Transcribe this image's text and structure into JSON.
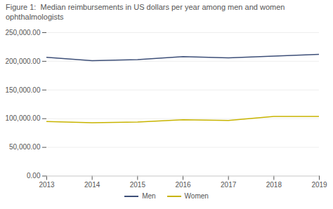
{
  "chart_data": {
    "type": "line",
    "title": "Figure 1:  Median reimbursements in US dollars per year among men and women ophthalmologists",
    "x": [
      2013,
      2014,
      2015,
      2016,
      2017,
      2018,
      2019
    ],
    "series": [
      {
        "name": "Men",
        "color": "#3d4f78",
        "values": [
          207000,
          201000,
          203000,
          208000,
          206000,
          209000,
          212000
        ]
      },
      {
        "name": "Women",
        "color": "#c8b400",
        "values": [
          95000,
          93000,
          94000,
          98000,
          97000,
          104000,
          104000
        ]
      }
    ],
    "xlim": [
      2013,
      2019
    ],
    "xticks": [
      2013,
      2014,
      2015,
      2016,
      2017,
      2018,
      2019
    ],
    "ylim": [
      0,
      250000
    ],
    "yticks": [
      {
        "value": 0,
        "label": "0.00"
      },
      {
        "value": 50000,
        "label": "50,000.00"
      },
      {
        "value": 100000,
        "label": "100,000.00"
      },
      {
        "value": 150000,
        "label": "150,000.00"
      },
      {
        "value": 200000,
        "label": "200,000.00"
      },
      {
        "value": 250000,
        "label": "250,000.00"
      }
    ],
    "grid": "y",
    "legend": "bottom"
  }
}
